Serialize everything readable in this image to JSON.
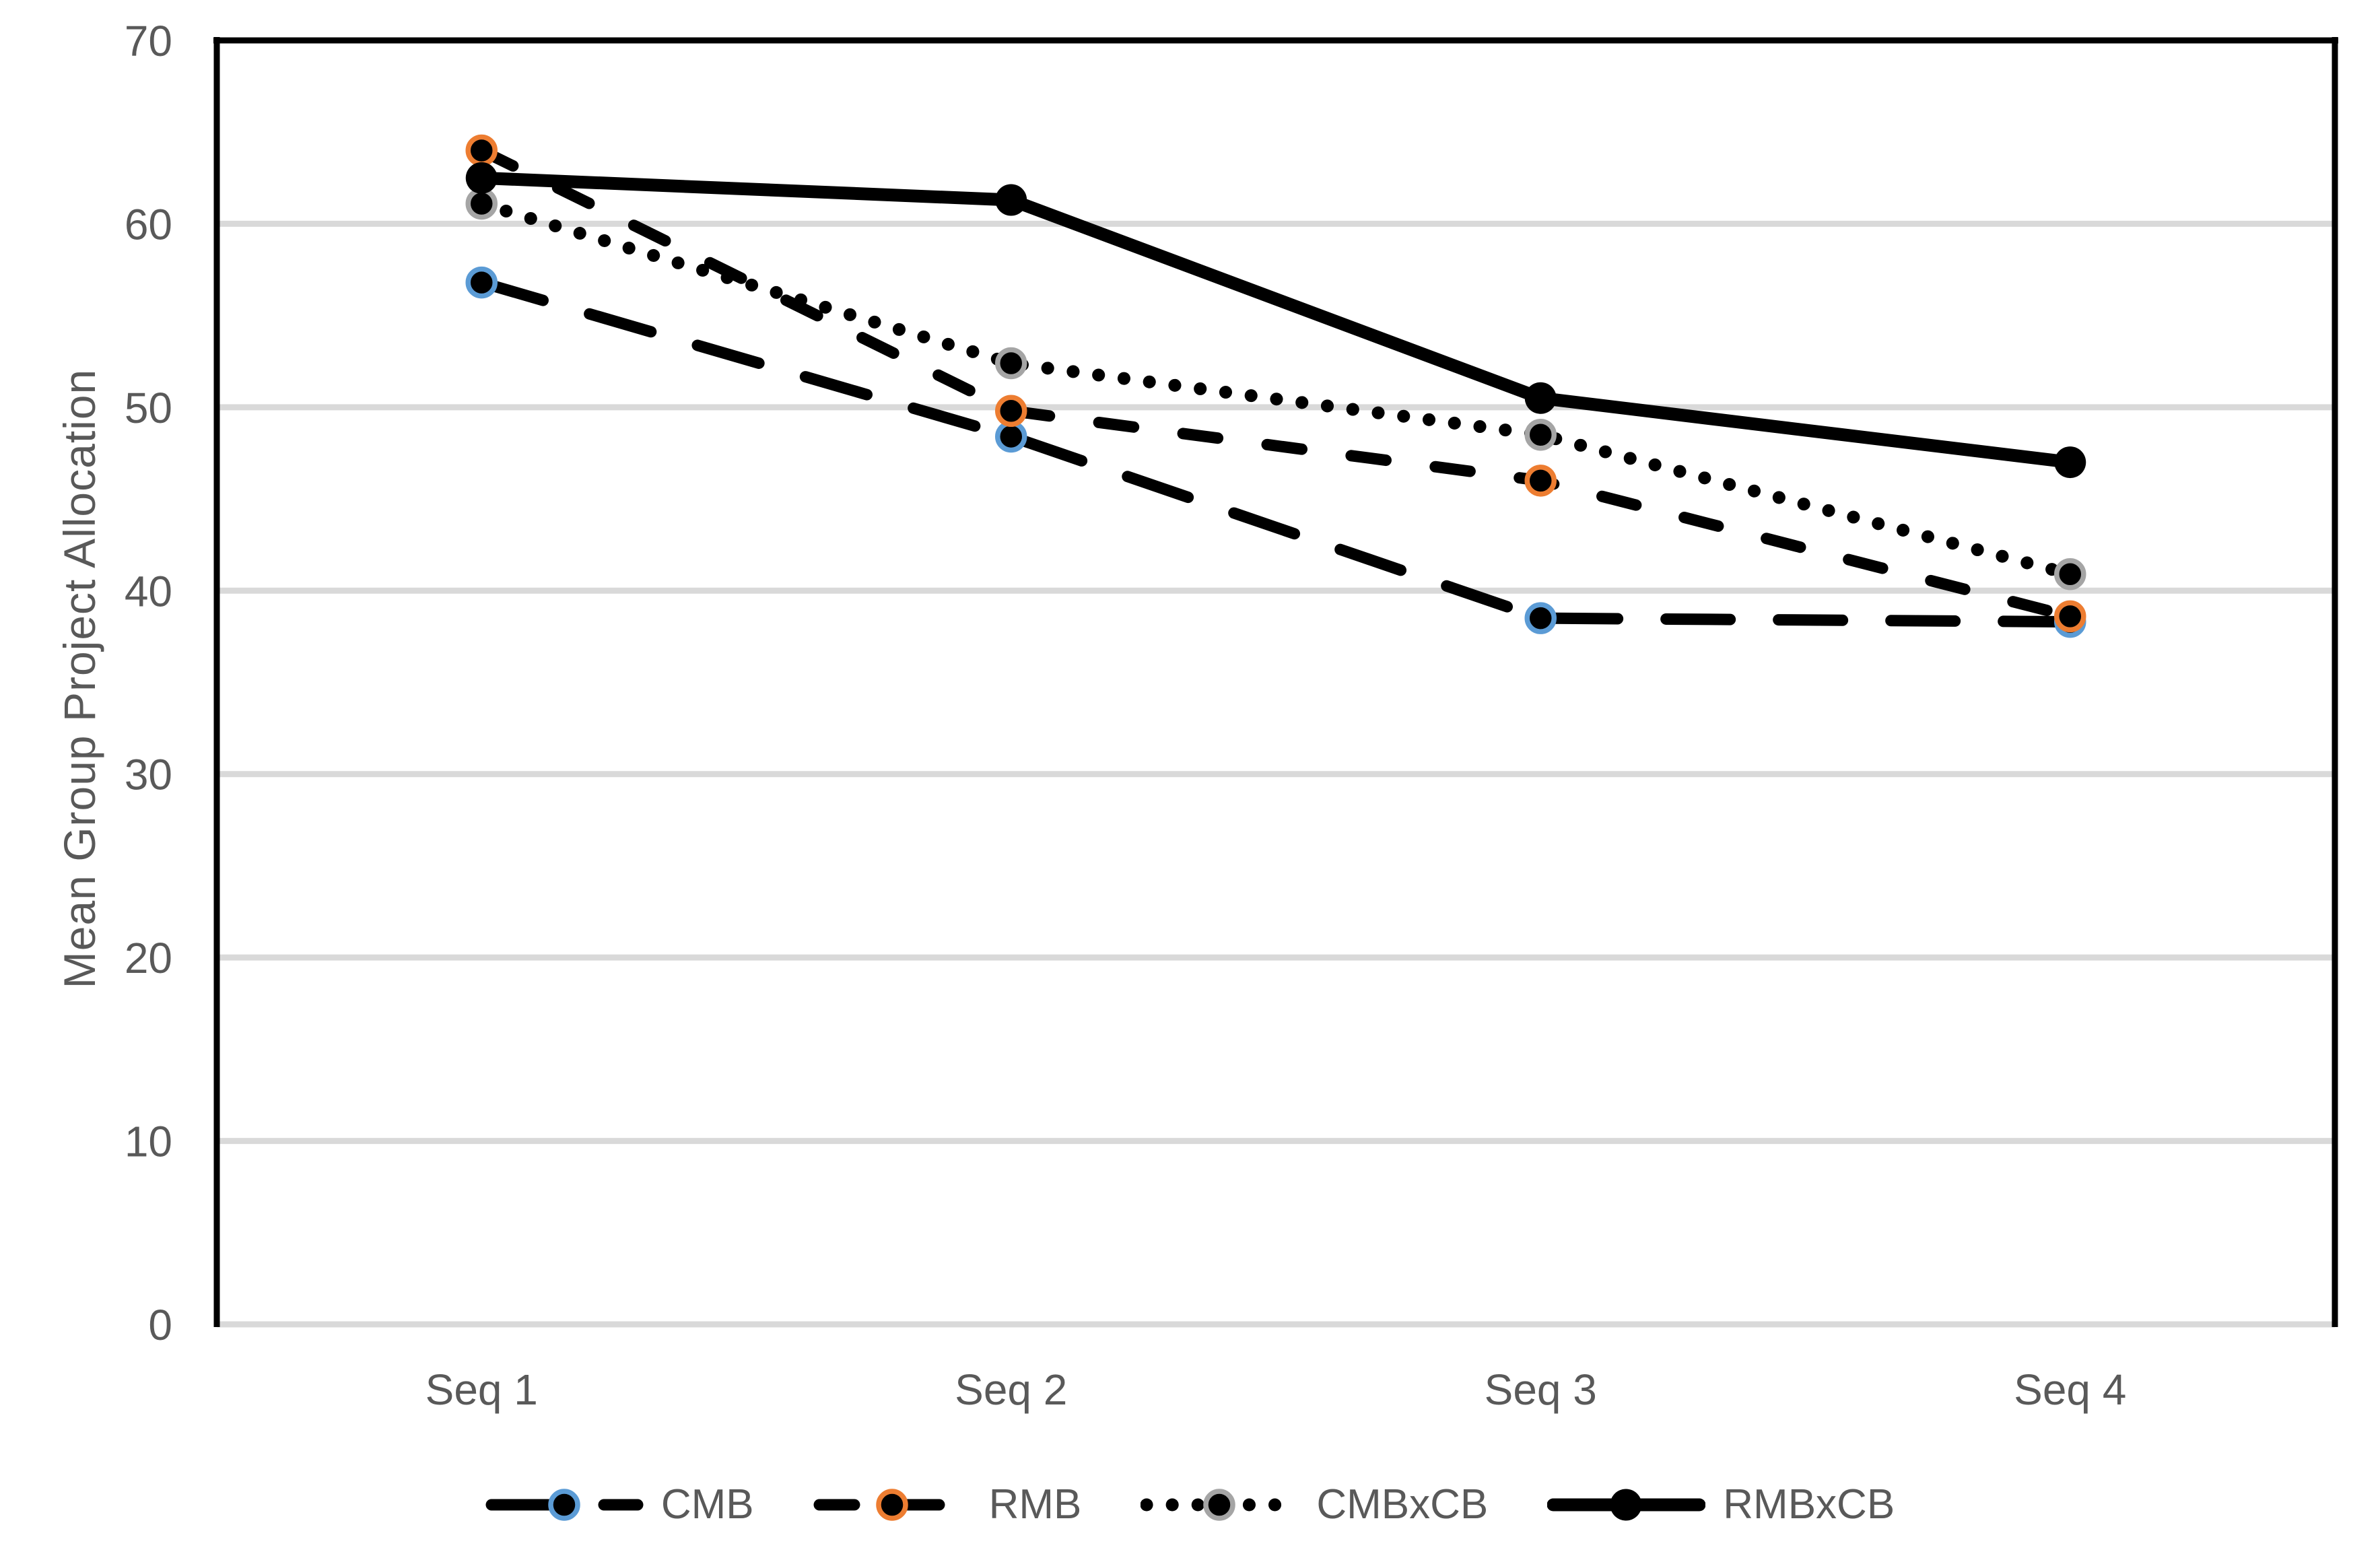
{
  "chart_data": {
    "type": "line",
    "categories": [
      "Seq 1",
      "Seq 2",
      "Seq 3",
      "Seq 4"
    ],
    "series": [
      {
        "name": "CMB",
        "values": [
          56.8,
          48.4,
          38.5,
          38.3
        ],
        "line_style": "long-dash",
        "line_color": "#000000",
        "marker_ring_color": "#5B9BD5"
      },
      {
        "name": "RMB",
        "values": [
          64.0,
          49.8,
          46.0,
          38.6
        ],
        "line_style": "dash",
        "line_color": "#000000",
        "marker_ring_color": "#ED7D31"
      },
      {
        "name": "CMBxCB",
        "values": [
          61.1,
          52.4,
          48.5,
          40.9
        ],
        "line_style": "dot",
        "line_color": "#000000",
        "marker_ring_color": "#A5A5A5"
      },
      {
        "name": "RMBxCB",
        "values": [
          62.5,
          61.3,
          50.5,
          47.0
        ],
        "line_style": "solid",
        "line_color": "#000000",
        "marker_ring_color": null
      }
    ],
    "title": "",
    "xlabel": "",
    "ylabel": "Mean Group Project Allocation",
    "ylim": [
      0,
      70
    ],
    "yticks": [
      0,
      10,
      20,
      30,
      40,
      50,
      60,
      70
    ],
    "grid": true,
    "legend_position": "bottom"
  },
  "colors": {
    "text": "#595959",
    "gridline": "#D9D9D9",
    "axis": "#000000",
    "marker_fill": "#000000",
    "background": "#FFFFFF"
  }
}
